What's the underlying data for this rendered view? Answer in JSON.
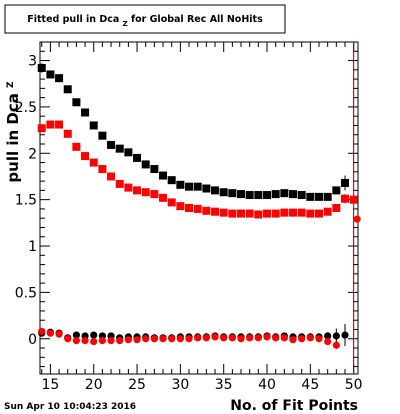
{
  "title": {
    "prefix": "Fitted pull in Dca",
    "sub": "Z",
    "suffix": " for Global Rec All NoHits"
  },
  "datestamp": "Sun Apr 10 10:04:23 2016",
  "colors": {
    "series_black": "#000000",
    "series_red": "#ff0000",
    "vline": "#8b0000"
  },
  "chart_data": {
    "type": "scatter",
    "title": "Fitted pull in Dca_Z for Global Rec All NoHits",
    "xlabel": "No. of Fit Points",
    "ylabel_prefix": "pull in Dca",
    "ylabel_sub": "Z",
    "xlim": [
      13.8,
      50.5
    ],
    "ylim": [
      -0.38,
      3.2
    ],
    "xticks": [
      15,
      20,
      25,
      30,
      35,
      40,
      45,
      50
    ],
    "yticks": [
      0,
      0.5,
      1,
      1.5,
      2,
      2.5,
      3
    ],
    "ytick_labels": [
      "0",
      "0.5",
      "1",
      "1.5",
      "2",
      "2.5",
      "3"
    ],
    "marker_line_x": 50,
    "grid": false,
    "series": [
      {
        "marker": "square",
        "color": "#000000",
        "x": [
          14,
          15,
          16,
          17,
          18,
          19,
          20,
          21,
          22,
          23,
          24,
          25,
          26,
          27,
          28,
          29,
          30,
          31,
          32,
          33,
          34,
          35,
          36,
          37,
          38,
          39,
          40,
          41,
          42,
          43,
          44,
          45,
          46,
          47,
          48,
          49
        ],
        "y": [
          2.92,
          2.85,
          2.81,
          2.69,
          2.55,
          2.44,
          2.3,
          2.19,
          2.09,
          2.05,
          2.01,
          1.95,
          1.88,
          1.83,
          1.76,
          1.71,
          1.66,
          1.64,
          1.64,
          1.62,
          1.6,
          1.58,
          1.57,
          1.56,
          1.55,
          1.55,
          1.55,
          1.56,
          1.57,
          1.56,
          1.55,
          1.53,
          1.53,
          1.53,
          1.6,
          1.68
        ],
        "yerr": [
          0.05,
          0.03,
          0.03,
          0.02,
          0.02,
          0.02,
          0.02,
          0.02,
          0.02,
          0.02,
          0.02,
          0.02,
          0.02,
          0.02,
          0.02,
          0.02,
          0.02,
          0.02,
          0.02,
          0.02,
          0.02,
          0.02,
          0.02,
          0.02,
          0.02,
          0.02,
          0.02,
          0.02,
          0.02,
          0.02,
          0.02,
          0.02,
          0.02,
          0.03,
          0.04,
          0.08
        ]
      },
      {
        "marker": "square",
        "color": "#ff0000",
        "x": [
          14,
          15,
          16,
          17,
          18,
          19,
          20,
          21,
          22,
          23,
          24,
          25,
          26,
          27,
          28,
          29,
          30,
          31,
          32,
          33,
          34,
          35,
          36,
          37,
          38,
          39,
          40,
          41,
          42,
          43,
          44,
          45,
          46,
          47,
          48,
          49,
          50
        ],
        "y": [
          2.27,
          2.31,
          2.31,
          2.21,
          2.07,
          1.97,
          1.9,
          1.83,
          1.75,
          1.67,
          1.63,
          1.6,
          1.58,
          1.56,
          1.52,
          1.47,
          1.43,
          1.41,
          1.4,
          1.38,
          1.37,
          1.36,
          1.35,
          1.35,
          1.35,
          1.34,
          1.35,
          1.35,
          1.36,
          1.36,
          1.36,
          1.35,
          1.35,
          1.37,
          1.41,
          1.51,
          1.5
        ],
        "yerr": [
          0.03,
          0.02,
          0.02,
          0.02,
          0.02,
          0.02,
          0.02,
          0.02,
          0.02,
          0.02,
          0.02,
          0.02,
          0.02,
          0.02,
          0.02,
          0.02,
          0.02,
          0.02,
          0.02,
          0.02,
          0.02,
          0.02,
          0.02,
          0.02,
          0.02,
          0.02,
          0.02,
          0.02,
          0.02,
          0.02,
          0.02,
          0.02,
          0.02,
          0.02,
          0.03,
          0.05,
          0.03
        ],
        "x_last": 50.4,
        "y_last": 1.29
      },
      {
        "marker": "circle",
        "color": "#000000",
        "x": [
          14,
          15,
          16,
          17,
          18,
          19,
          20,
          21,
          22,
          23,
          24,
          25,
          26,
          27,
          28,
          29,
          30,
          31,
          32,
          33,
          34,
          35,
          36,
          37,
          38,
          39,
          40,
          41,
          42,
          43,
          44,
          45,
          46,
          47,
          48,
          49
        ],
        "y": [
          0.06,
          0.07,
          0.06,
          0.01,
          0.04,
          0.03,
          0.04,
          0.03,
          0.03,
          0.01,
          0.02,
          0.02,
          0.02,
          0.01,
          0.01,
          0.01,
          0.02,
          0.02,
          0.02,
          0.02,
          0.03,
          0.02,
          0.02,
          0.02,
          0.02,
          0.02,
          0.03,
          0.02,
          0.03,
          0.02,
          0.02,
          0.02,
          0.02,
          0.03,
          0.03,
          0.04
        ],
        "yerr": [
          0.02,
          0.02,
          0.02,
          0.02,
          0.02,
          0.02,
          0.02,
          0.02,
          0.02,
          0.02,
          0.02,
          0.02,
          0.02,
          0.02,
          0.02,
          0.02,
          0.02,
          0.02,
          0.02,
          0.02,
          0.02,
          0.02,
          0.02,
          0.02,
          0.02,
          0.02,
          0.02,
          0.02,
          0.02,
          0.02,
          0.02,
          0.02,
          0.02,
          0.04,
          0.08,
          0.12
        ]
      },
      {
        "marker": "circle",
        "color": "#ff0000",
        "x": [
          14,
          15,
          16,
          17,
          18,
          19,
          20,
          21,
          22,
          23,
          24,
          25,
          26,
          27,
          28,
          29,
          30,
          31,
          32,
          33,
          34,
          35,
          36,
          37,
          38,
          39,
          40,
          41,
          42,
          43,
          44,
          45,
          46,
          47,
          48
        ],
        "y": [
          0.08,
          0.06,
          0.05,
          0.0,
          -0.02,
          -0.02,
          -0.03,
          -0.02,
          -0.02,
          -0.02,
          -0.01,
          -0.01,
          0.0,
          0.0,
          0.0,
          0.0,
          0.0,
          0.0,
          0.01,
          0.01,
          0.02,
          0.01,
          0.01,
          0.0,
          0.01,
          0.01,
          0.02,
          0.01,
          0.01,
          -0.01,
          0.0,
          0.01,
          0.0,
          -0.03,
          -0.07
        ],
        "yerr": [
          0.02,
          0.02,
          0.02,
          0.02,
          0.02,
          0.02,
          0.02,
          0.02,
          0.02,
          0.02,
          0.02,
          0.02,
          0.02,
          0.02,
          0.02,
          0.02,
          0.02,
          0.02,
          0.02,
          0.02,
          0.02,
          0.02,
          0.02,
          0.02,
          0.02,
          0.02,
          0.02,
          0.02,
          0.02,
          0.02,
          0.02,
          0.02,
          0.02,
          0.03,
          0.04
        ]
      }
    ]
  }
}
